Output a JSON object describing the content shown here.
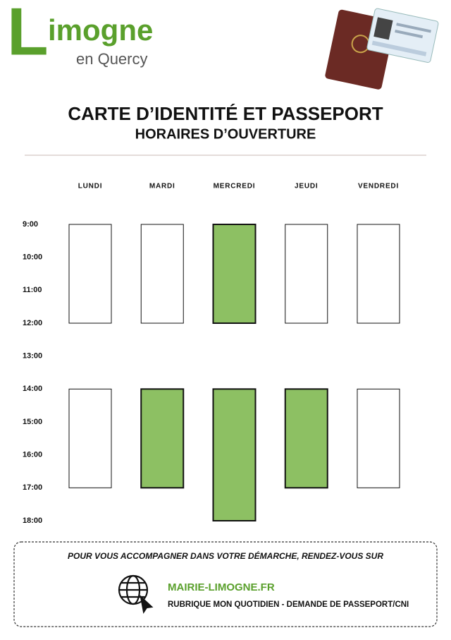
{
  "logo": {
    "initial": "L",
    "rest": "imogne",
    "subtitle": "en Quercy"
  },
  "header": {
    "title": "CARTE D’IDENTITÉ ET PASSEPORT",
    "subtitle": "HORAIRES D’OUVERTURE"
  },
  "schedule": {
    "highlight_color": "#8dc063",
    "hours": [
      {
        "value": 9,
        "label": "9:00"
      },
      {
        "value": 10,
        "label": "10:00"
      },
      {
        "value": 11,
        "label": "11:00"
      },
      {
        "value": 12,
        "label": "12:00"
      },
      {
        "value": 13,
        "label": "13:00"
      },
      {
        "value": 14,
        "label": "14:00"
      },
      {
        "value": 15,
        "label": "15:00"
      },
      {
        "value": 16,
        "label": "16:00"
      },
      {
        "value": 17,
        "label": "17:00"
      },
      {
        "value": 18,
        "label": "18:00"
      }
    ],
    "days": [
      {
        "name": "LUNDI",
        "slots": [
          {
            "start": 9,
            "end": 12,
            "highlighted": false
          },
          {
            "start": 14,
            "end": 17,
            "highlighted": false
          }
        ]
      },
      {
        "name": "MARDI",
        "slots": [
          {
            "start": 9,
            "end": 12,
            "highlighted": false
          },
          {
            "start": 14,
            "end": 17,
            "highlighted": true
          }
        ]
      },
      {
        "name": "MERCREDI",
        "slots": [
          {
            "start": 9,
            "end": 12,
            "highlighted": true
          },
          {
            "start": 14,
            "end": 18,
            "highlighted": true
          }
        ]
      },
      {
        "name": "JEUDI",
        "slots": [
          {
            "start": 9,
            "end": 12,
            "highlighted": false
          },
          {
            "start": 14,
            "end": 17,
            "highlighted": true
          }
        ]
      },
      {
        "name": "VENDREDI",
        "slots": [
          {
            "start": 9,
            "end": 12,
            "highlighted": false
          },
          {
            "start": 14,
            "end": 17,
            "highlighted": false
          }
        ]
      }
    ]
  },
  "footer": {
    "intro": "POUR VOUS ACCOMPAGNER DANS VOTRE DÉMARCHE, RENDEZ-VOUS SUR",
    "website": "MAIRIE-LIMOGNE.FR",
    "path": "RUBRIQUE MON QUOTIDIEN - DEMANDE DE PASSEPORT/CNI"
  }
}
